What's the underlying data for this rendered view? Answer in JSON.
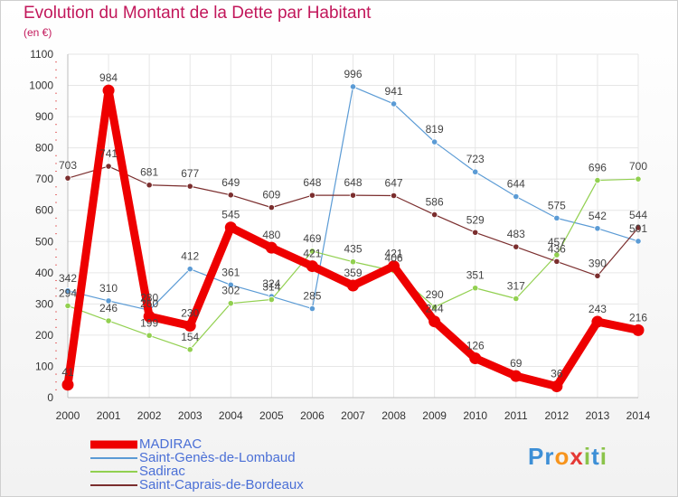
{
  "title": "Evolution du Montant de la Dette par Habitant",
  "subtitle": "(en €)",
  "brand": {
    "letters": [
      {
        "ch": "P",
        "color": "#3d8fd6"
      },
      {
        "ch": "r",
        "color": "#3d8fd6"
      },
      {
        "ch": "o",
        "color": "#f7941d"
      },
      {
        "ch": "x",
        "color": "#e53935"
      },
      {
        "ch": "i",
        "color": "#8bc34a"
      },
      {
        "ch": "t",
        "color": "#3d8fd6"
      },
      {
        "ch": "i",
        "color": "#8bc34a"
      }
    ]
  },
  "chart_data": {
    "type": "line",
    "title": "Evolution du Montant de la Dette par Habitant",
    "subtitle": "(en €)",
    "x": [
      "2000",
      "2001",
      "2002",
      "2003",
      "2004",
      "2005",
      "2006",
      "2007",
      "2008",
      "2009",
      "2010",
      "2011",
      "2012",
      "2013",
      "2014"
    ],
    "ylim": [
      0,
      1100
    ],
    "yticks": [
      0,
      100,
      200,
      300,
      400,
      500,
      600,
      700,
      800,
      900,
      1000,
      1100
    ],
    "grid": true,
    "legend_position": "bottom-left",
    "series": [
      {
        "name": "MADIRAC",
        "color": "#ee0000",
        "emphasis": true,
        "values": [
          41,
          984,
          260,
          230,
          545,
          480,
          421,
          359,
          421,
          244,
          126,
          69,
          36,
          243,
          216
        ],
        "labels": [
          "41",
          "984",
          "260",
          "230",
          "545",
          "480",
          "421",
          "359",
          "421",
          "244",
          "126",
          "69",
          "36",
          "243",
          "216"
        ]
      },
      {
        "name": "Saint-Genès-de-Lombaud",
        "color": "#5b9bd5",
        "emphasis": false,
        "values": [
          342,
          310,
          280,
          412,
          361,
          324,
          285,
          996,
          941,
          819,
          723,
          644,
          575,
          542,
          501
        ],
        "labels": [
          "342",
          "310",
          "280",
          "412",
          "361",
          "324",
          "285",
          "996",
          "941",
          "819",
          "723",
          "644",
          "575",
          "542",
          "501"
        ]
      },
      {
        "name": "Sadirac",
        "color": "#92d050",
        "emphasis": false,
        "values": [
          294,
          246,
          199,
          154,
          302,
          314,
          469,
          435,
          406,
          290,
          351,
          317,
          457,
          696,
          700
        ],
        "labels": [
          "294",
          "246",
          "199",
          "154",
          "302",
          "314",
          "469",
          "435",
          "406",
          "290",
          "351",
          "317",
          "457",
          "696",
          "700"
        ]
      },
      {
        "name": "Saint-Caprais-de-Bordeaux",
        "color": "#7b2e2e",
        "emphasis": false,
        "values": [
          703,
          741,
          681,
          677,
          649,
          609,
          648,
          648,
          647,
          586,
          529,
          483,
          436,
          390,
          544
        ],
        "labels": [
          "703",
          "741",
          "681",
          "677",
          "649",
          "609",
          "648",
          "648",
          "647",
          "586",
          "529",
          "483",
          "436",
          "390",
          "544"
        ]
      }
    ]
  }
}
